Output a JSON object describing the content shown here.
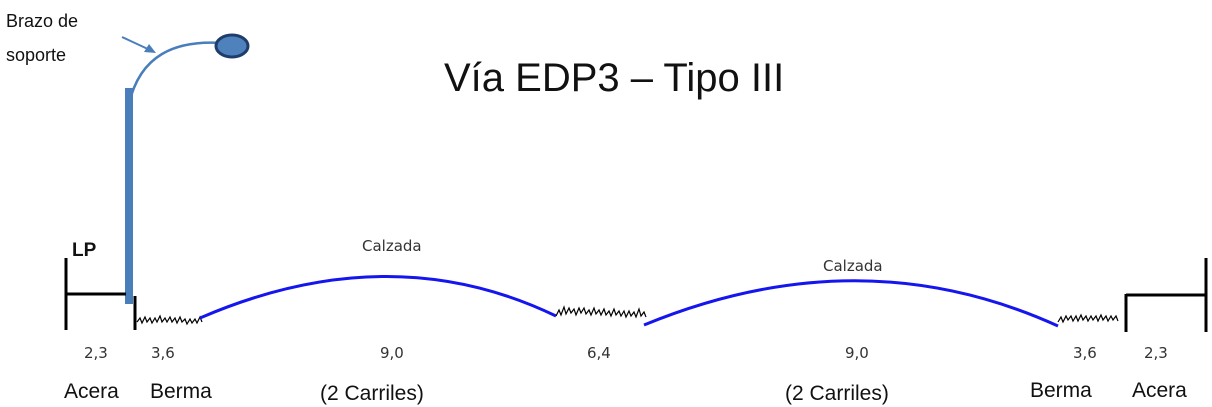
{
  "diagram": {
    "title": "Vía EDP3 – Tipo III",
    "arm_label_line1": "Brazo de",
    "arm_label_line2": "soporte",
    "lp_label": "LP",
    "roadway_left_label": "Calzada",
    "roadway_right_label": "Calzada",
    "dimensions": [
      "2,3",
      "3,6",
      "9,0",
      "6,4",
      "9,0",
      "3,6",
      "2,3"
    ],
    "sections": [
      "Acera",
      "Berma",
      "(2 Carriles)",
      "(2 Carriles)",
      "Berma",
      "Acera"
    ],
    "colors": {
      "pole": "#4a7ebb",
      "lamp_fill": "#4f81bd",
      "lamp_stroke": "#1f3d6b",
      "road": "#1515ee",
      "lines": "#000000"
    }
  }
}
